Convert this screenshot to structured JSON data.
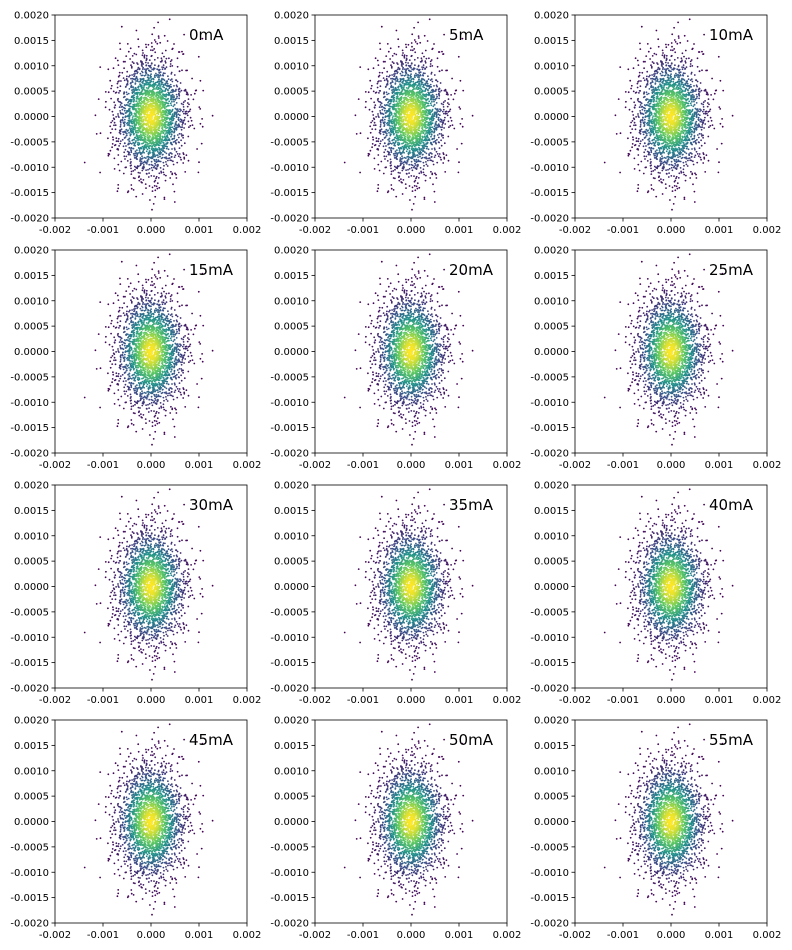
{
  "colors": {
    "background": "#ffffff",
    "axes": "#000000",
    "colormap": [
      "#440154",
      "#3b528b",
      "#21918c",
      "#5ec962",
      "#fde725"
    ]
  },
  "chart_data": [
    {
      "type": "scatter",
      "title": "0mA",
      "colormap": "viridis",
      "xlim": [
        -0.002,
        0.002
      ],
      "ylim": [
        -0.002,
        0.002
      ],
      "x_center": 0.0,
      "y_center": 0.0,
      "x_spread_sd": 0.00035,
      "y_spread_sd": 0.00055,
      "grid": false,
      "x_ticks": [
        "-0.002",
        "-0.001",
        "0.000",
        "0.001",
        "0.002"
      ],
      "y_ticks": [
        "-0.0020",
        "-0.0015",
        "-0.0010",
        "-0.0005",
        "0.0000",
        "0.0005",
        "0.0010",
        "0.0015",
        "0.0020"
      ]
    },
    {
      "type": "scatter",
      "title": "5mA",
      "colormap": "viridis",
      "xlim": [
        -0.002,
        0.002
      ],
      "ylim": [
        -0.002,
        0.002
      ],
      "x_center": 0.0,
      "y_center": 0.0,
      "x_spread_sd": 0.00035,
      "y_spread_sd": 0.00055,
      "grid": false,
      "x_ticks": [
        "-0.002",
        "-0.001",
        "0.000",
        "0.001",
        "0.002"
      ],
      "y_ticks": [
        "-0.0020",
        "-0.0015",
        "-0.0010",
        "-0.0005",
        "0.0000",
        "0.0005",
        "0.0010",
        "0.0015",
        "0.0020"
      ]
    },
    {
      "type": "scatter",
      "title": "10mA",
      "colormap": "viridis",
      "xlim": [
        -0.002,
        0.002
      ],
      "ylim": [
        -0.002,
        0.002
      ],
      "x_center": 0.0,
      "y_center": 0.0,
      "x_spread_sd": 0.00035,
      "y_spread_sd": 0.00055,
      "grid": false,
      "x_ticks": [
        "-0.002",
        "-0.001",
        "0.000",
        "0.001",
        "0.002"
      ],
      "y_ticks": [
        "-0.0020",
        "-0.0015",
        "-0.0010",
        "-0.0005",
        "0.0000",
        "0.0005",
        "0.0010",
        "0.0015",
        "0.0020"
      ]
    },
    {
      "type": "scatter",
      "title": "15mA",
      "colormap": "viridis",
      "xlim": [
        -0.002,
        0.002
      ],
      "ylim": [
        -0.002,
        0.002
      ],
      "x_center": 0.0,
      "y_center": 0.0,
      "x_spread_sd": 0.00035,
      "y_spread_sd": 0.00055,
      "grid": false,
      "x_ticks": [
        "-0.002",
        "-0.001",
        "0.000",
        "0.001",
        "0.002"
      ],
      "y_ticks": [
        "-0.0020",
        "-0.0015",
        "-0.0010",
        "-0.0005",
        "0.0000",
        "0.0005",
        "0.0010",
        "0.0015",
        "0.0020"
      ]
    },
    {
      "type": "scatter",
      "title": "20mA",
      "colormap": "viridis",
      "xlim": [
        -0.002,
        0.002
      ],
      "ylim": [
        -0.002,
        0.002
      ],
      "x_center": 0.0,
      "y_center": 0.0,
      "x_spread_sd": 0.00035,
      "y_spread_sd": 0.00055,
      "grid": false,
      "x_ticks": [
        "-0.002",
        "-0.001",
        "0.000",
        "0.001",
        "0.002"
      ],
      "y_ticks": [
        "-0.0020",
        "-0.0015",
        "-0.0010",
        "-0.0005",
        "0.0000",
        "0.0005",
        "0.0010",
        "0.0015",
        "0.0020"
      ]
    },
    {
      "type": "scatter",
      "title": "25mA",
      "colormap": "viridis",
      "xlim": [
        -0.002,
        0.002
      ],
      "ylim": [
        -0.002,
        0.002
      ],
      "x_center": 0.0,
      "y_center": 0.0,
      "x_spread_sd": 0.00035,
      "y_spread_sd": 0.00055,
      "grid": false,
      "x_ticks": [
        "-0.002",
        "-0.001",
        "0.000",
        "0.001",
        "0.002"
      ],
      "y_ticks": [
        "-0.0020",
        "-0.0015",
        "-0.0010",
        "-0.0005",
        "0.0000",
        "0.0005",
        "0.0010",
        "0.0015",
        "0.0020"
      ]
    },
    {
      "type": "scatter",
      "title": "30mA",
      "colormap": "viridis",
      "xlim": [
        -0.002,
        0.002
      ],
      "ylim": [
        -0.002,
        0.002
      ],
      "x_center": 0.0,
      "y_center": 0.0,
      "x_spread_sd": 0.00035,
      "y_spread_sd": 0.00055,
      "grid": false,
      "x_ticks": [
        "-0.002",
        "-0.001",
        "0.000",
        "0.001",
        "0.002"
      ],
      "y_ticks": [
        "-0.0020",
        "-0.0015",
        "-0.0010",
        "-0.0005",
        "0.0000",
        "0.0005",
        "0.0010",
        "0.0015",
        "0.0020"
      ]
    },
    {
      "type": "scatter",
      "title": "35mA",
      "colormap": "viridis",
      "xlim": [
        -0.002,
        0.002
      ],
      "ylim": [
        -0.002,
        0.002
      ],
      "x_center": 0.0,
      "y_center": 0.0,
      "x_spread_sd": 0.00035,
      "y_spread_sd": 0.00055,
      "grid": false,
      "x_ticks": [
        "-0.002",
        "-0.001",
        "0.000",
        "0.001",
        "0.002"
      ],
      "y_ticks": [
        "-0.0020",
        "-0.0015",
        "-0.0010",
        "-0.0005",
        "0.0000",
        "0.0005",
        "0.0010",
        "0.0015",
        "0.0020"
      ]
    },
    {
      "type": "scatter",
      "title": "40mA",
      "colormap": "viridis",
      "xlim": [
        -0.002,
        0.002
      ],
      "ylim": [
        -0.002,
        0.002
      ],
      "x_center": 0.0,
      "y_center": 0.0,
      "x_spread_sd": 0.00035,
      "y_spread_sd": 0.00055,
      "grid": false,
      "x_ticks": [
        "-0.002",
        "-0.001",
        "0.000",
        "0.001",
        "0.002"
      ],
      "y_ticks": [
        "-0.0020",
        "-0.0015",
        "-0.0010",
        "-0.0005",
        "0.0000",
        "0.0005",
        "0.0010",
        "0.0015",
        "0.0020"
      ]
    },
    {
      "type": "scatter",
      "title": "45mA",
      "colormap": "viridis",
      "xlim": [
        -0.002,
        0.002
      ],
      "ylim": [
        -0.002,
        0.002
      ],
      "x_center": 0.0,
      "y_center": 0.0,
      "x_spread_sd": 0.00035,
      "y_spread_sd": 0.00055,
      "grid": false,
      "x_ticks": [
        "-0.002",
        "-0.001",
        "0.000",
        "0.001",
        "0.002"
      ],
      "y_ticks": [
        "-0.0020",
        "-0.0015",
        "-0.0010",
        "-0.0005",
        "0.0000",
        "0.0005",
        "0.0010",
        "0.0015",
        "0.0020"
      ]
    },
    {
      "type": "scatter",
      "title": "50mA",
      "colormap": "viridis",
      "xlim": [
        -0.002,
        0.002
      ],
      "ylim": [
        -0.002,
        0.002
      ],
      "x_center": 0.0,
      "y_center": 0.0,
      "x_spread_sd": 0.00035,
      "y_spread_sd": 0.00055,
      "grid": false,
      "x_ticks": [
        "-0.002",
        "-0.001",
        "0.000",
        "0.001",
        "0.002"
      ],
      "y_ticks": [
        "-0.0020",
        "-0.0015",
        "-0.0010",
        "-0.0005",
        "0.0000",
        "0.0005",
        "0.0010",
        "0.0015",
        "0.0020"
      ]
    },
    {
      "type": "scatter",
      "title": "55mA",
      "colormap": "viridis",
      "xlim": [
        -0.002,
        0.002
      ],
      "ylim": [
        -0.002,
        0.002
      ],
      "x_center": 0.0,
      "y_center": 0.0,
      "x_spread_sd": 0.00035,
      "y_spread_sd": 0.00055,
      "grid": false,
      "x_ticks": [
        "-0.002",
        "-0.001",
        "0.000",
        "0.001",
        "0.002"
      ],
      "y_ticks": [
        "-0.0020",
        "-0.0015",
        "-0.0010",
        "-0.0005",
        "0.0000",
        "0.0005",
        "0.0010",
        "0.0015",
        "0.0020"
      ]
    }
  ]
}
